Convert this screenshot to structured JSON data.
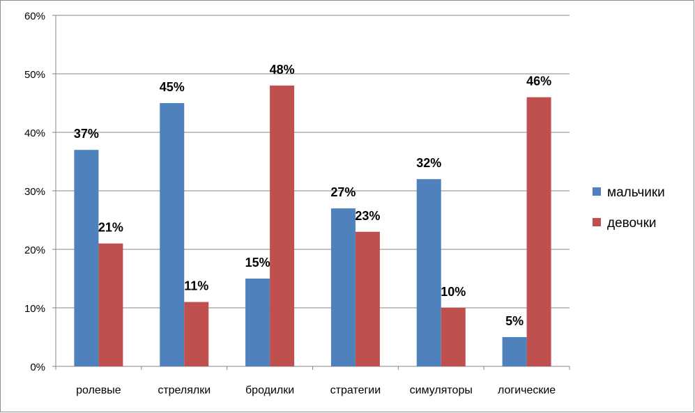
{
  "chart_data": {
    "type": "bar",
    "categories": [
      "ролевые",
      "стрелялки",
      "бродилки",
      "стратегии",
      "симуляторы",
      "логические"
    ],
    "series": [
      {
        "name": "мальчики",
        "values": [
          37,
          45,
          15,
          27,
          32,
          5
        ],
        "color": "#4F81BD"
      },
      {
        "name": "девочки",
        "values": [
          21,
          11,
          48,
          23,
          10,
          46
        ],
        "color": "#C0504D"
      }
    ],
    "value_labels": [
      [
        "37%",
        "45%",
        "15%",
        "27%",
        "32%",
        "5%"
      ],
      [
        "21%",
        "11%",
        "48%",
        "23%",
        "10%",
        "46%"
      ]
    ],
    "y_ticks": [
      "0%",
      "10%",
      "20%",
      "30%",
      "40%",
      "50%",
      "60%"
    ],
    "ylim": [
      0,
      60
    ],
    "grid": true,
    "legend_position": "right",
    "title": "",
    "xlabel": "",
    "ylabel": ""
  }
}
